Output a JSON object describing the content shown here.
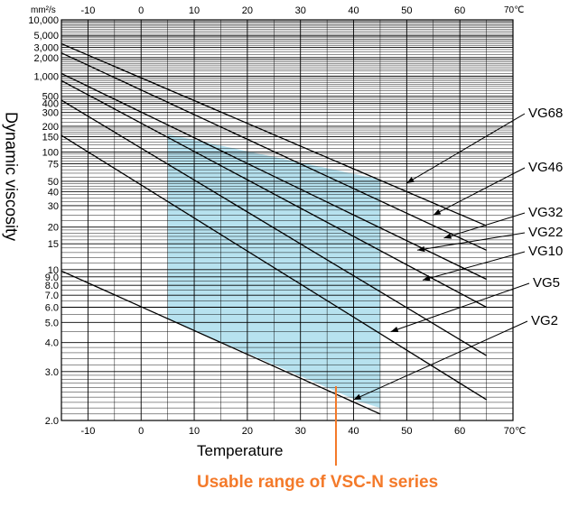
{
  "chart_data": {
    "type": "line",
    "y_axis_title": "Dynamic viscosity",
    "x_axis_title": "Temperature",
    "y_unit": "mm²/s",
    "x_unit": "70℃",
    "y_scale": "log",
    "x_range": [
      -15,
      70
    ],
    "y_range": [
      2.0,
      10000
    ],
    "x_ticks": [
      -10,
      0,
      10,
      20,
      30,
      40,
      50,
      60
    ],
    "x_tick_labels": [
      "-10",
      "0",
      "10",
      "20",
      "30",
      "40",
      "50",
      "60"
    ],
    "y_ticks": [
      10000,
      5000,
      3000,
      2000,
      1000,
      500,
      400,
      300,
      200,
      150,
      100,
      75,
      50,
      40,
      30,
      20,
      15,
      10,
      9.0,
      8.0,
      7.0,
      6.0,
      5.0,
      4.0,
      3.0,
      2.0
    ],
    "y_tick_labels": [
      "10,000",
      "5,000",
      "3,000",
      "2,000",
      "1,000",
      "500",
      "400",
      "300",
      "200",
      "150",
      "100",
      "75",
      "50",
      "40",
      "30",
      "20",
      "15",
      "10",
      "9.0",
      "8.0",
      "7.0",
      "6.0",
      "5.0",
      "4.0",
      "3.0",
      "2.0"
    ],
    "series": [
      {
        "name": "VG68",
        "x": [
          -15,
          65
        ],
        "y": [
          3500,
          20.5
        ],
        "label_x": 50,
        "label_y": 48
      },
      {
        "name": "VG46",
        "x": [
          -15,
          65
        ],
        "y": [
          2400,
          13.5
        ],
        "label_x": 55,
        "label_y": 25
      },
      {
        "name": "VG32",
        "x": [
          -15,
          65
        ],
        "y": [
          1100,
          8.7
        ],
        "label_x": 57,
        "label_y": 16.5
      },
      {
        "name": "VG22",
        "x": [
          -15,
          65
        ],
        "y": [
          850,
          6.0
        ],
        "label_x": 52,
        "label_y": 13.5
      },
      {
        "name": "VG10",
        "x": [
          -15,
          65
        ],
        "y": [
          440,
          3.5
        ],
        "label_x": 53,
        "label_y": 8.6
      },
      {
        "name": "VG5",
        "x": [
          -15,
          65
        ],
        "y": [
          155,
          2.35
        ],
        "label_x": 47,
        "label_y": 4.5
      },
      {
        "name": "VG2",
        "x": [
          -15,
          45
        ],
        "y": [
          9.8,
          2.1
        ],
        "label_x": 40,
        "label_y": 2.35
      }
    ],
    "usable_range": {
      "label": "Usable range of VSC-N series",
      "x_min": 5,
      "x_max": 45,
      "top": [
        [
          5,
          160
        ],
        [
          45,
          52
        ]
      ],
      "bottom": [
        [
          5,
          5.2
        ],
        [
          41,
          2.32
        ],
        [
          45,
          2.2
        ]
      ]
    },
    "colors": {
      "usable_fill": "#b7e2ef",
      "caption": "#f47a2a",
      "lines": "#000000",
      "grid": "#000000"
    }
  }
}
